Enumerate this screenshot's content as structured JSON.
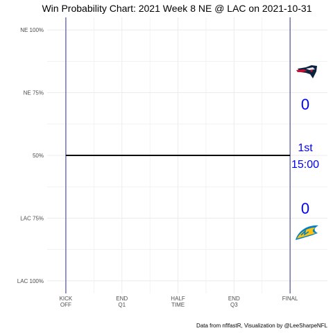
{
  "chart_data": {
    "type": "line",
    "title": "Win Probability Chart: 2021 Week 8 NE @ LAC on 2021-10-31",
    "caption": "Data from nflfastR, Visualization by @LeeSharpeNFL",
    "xlabel": "",
    "ylabel": "",
    "x_ticks": [
      {
        "value": 0,
        "lines": [
          "KICK",
          "OFF"
        ]
      },
      {
        "value": 15,
        "lines": [
          "END",
          "Q1"
        ]
      },
      {
        "value": 30,
        "lines": [
          "HALF",
          "TIME"
        ]
      },
      {
        "value": 45,
        "lines": [
          "END",
          "Q3"
        ]
      },
      {
        "value": 60,
        "lines": [
          "FINAL"
        ]
      }
    ],
    "xlim": [
      -5,
      70
    ],
    "y_ticks": [
      {
        "value": 1.0,
        "label": "NE 100%"
      },
      {
        "value": 0.75,
        "label": "NE 75%"
      },
      {
        "value": 0.5,
        "label": "50%"
      },
      {
        "value": 0.25,
        "label": "LAC 75%"
      },
      {
        "value": 0.0,
        "label": "LAC 100%"
      }
    ],
    "ylim": [
      -0.05,
      1.05
    ],
    "grid": true,
    "vertical_lines": [
      0,
      60
    ],
    "series": [
      {
        "x": [
          0,
          60
        ],
        "y": [
          0.5,
          0.5
        ]
      }
    ],
    "colors": {
      "line": "#000000",
      "vline": "#2b2f7a",
      "grid": "#ebebeb",
      "annotation": "#0000ff"
    },
    "annotations": {
      "ne_score": "0",
      "quarter": "1st",
      "clock": "15:00",
      "lac_score": "0"
    },
    "logos": {
      "top": "patriots-logo",
      "bottom": "chargers-logo"
    }
  }
}
